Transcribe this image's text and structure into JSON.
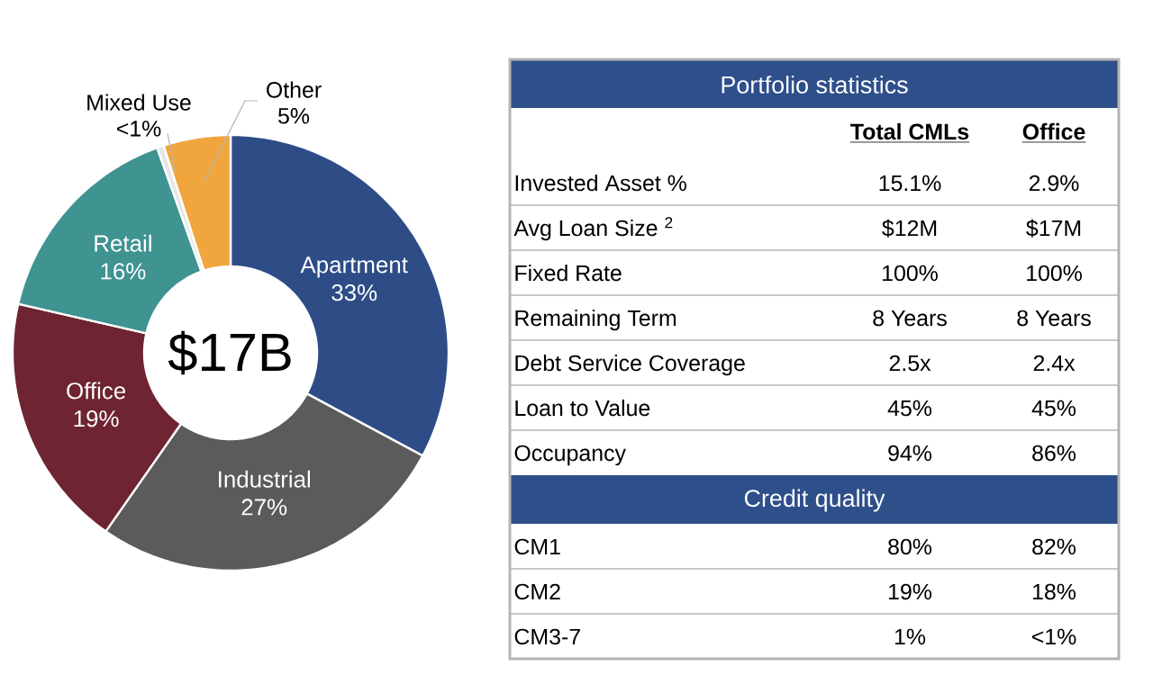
{
  "chart_data": [
    {
      "type": "donut",
      "categories": [
        "Apartment",
        "Industrial",
        "Office",
        "Retail",
        "Mixed Use",
        "Other"
      ],
      "values": [
        33,
        27,
        19,
        16,
        0.5,
        5
      ],
      "value_labels": [
        "33%",
        "27%",
        "19%",
        "16%",
        "<1%",
        "5%"
      ],
      "colors": [
        "#2e4d87",
        "#5b5b5b",
        "#6e2432",
        "#3f9391",
        "#e6e6e6",
        "#f0a63c"
      ],
      "annotations": [
        "$17B"
      ]
    },
    {
      "type": "other",
      "title": "Portfolio statistics",
      "categories": [
        "Invested Asset %",
        "Avg Loan Size $^{2}$",
        "Fixed Rate",
        "Remaining Term",
        "Debt Service Coverage",
        "Loan to Value",
        "Occupancy"
      ],
      "annotations": [
        "Total CMLs",
        "Office",
        "15.1%",
        "2.9%",
        "$12M",
        "$17M",
        "100%",
        "100%",
        "8 Years",
        "8 Years",
        "2.5x",
        "2.4x",
        "45%",
        "45%",
        "94%",
        "86%"
      ]
    },
    {
      "type": "other",
      "title": "Credit quality",
      "categories": [
        "CM1",
        "CM2",
        "CM3-7"
      ],
      "annotations": [
        "80%",
        "82%",
        "19%",
        "18%",
        "1%",
        "<1%"
      ]
    }
  ]
}
